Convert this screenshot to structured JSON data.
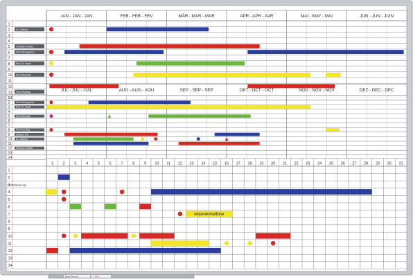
{
  "board": {
    "colors": {
      "frame": "#b9bcc0",
      "grid": "#7d8187",
      "blue": "#2c3e9c",
      "red": "#d42a26",
      "yellow": "#f1e42a",
      "green": "#6bb53d",
      "magenta": "#c22d8a",
      "label_plate": "#5a5f66"
    },
    "half1": {
      "months": [
        "JAN - JAN - JAN",
        "FEB - FEB - FEV",
        "MÄR - MAR - MAR",
        "APR - APR - AVR",
        "MAI - MAY - MAI",
        "JUN - JUN - JUIN"
      ],
      "row_numbers": [
        "1",
        "2",
        "3",
        "4",
        "5",
        "6",
        "7",
        "8",
        "9",
        "10",
        "11",
        "12",
        "13",
        "14"
      ],
      "row_labels": [
        "",
        "Dr. Gelltner",
        "",
        "",
        "Friedrich Schiller",
        "Fritz Baumgartner",
        "",
        "Prof. Dr. Faust",
        "",
        "Ernst Meyhafe",
        "",
        "",
        "Paul Grünling",
        ""
      ],
      "bars": [
        {
          "row": 2,
          "start": 1.0,
          "end": 2.7,
          "color": "blue"
        },
        {
          "row": 5,
          "start": 0.55,
          "end": 3.55,
          "color": "red"
        },
        {
          "row": 6,
          "start": 0.3,
          "end": 1.95,
          "color": "blue"
        },
        {
          "row": 6,
          "start": 3.35,
          "end": 5.95,
          "color": "blue"
        },
        {
          "row": 8,
          "start": 1.5,
          "end": 3.3,
          "color": "green"
        },
        {
          "row": 10,
          "start": 1.45,
          "end": 4.4,
          "color": "yellow"
        },
        {
          "row": 10,
          "start": 4.65,
          "end": 4.9,
          "color": "yellow"
        },
        {
          "row": 12,
          "start": 0.05,
          "end": 1.2,
          "color": "red"
        },
        {
          "row": 12,
          "start": 3.35,
          "end": 4.8,
          "color": "red"
        }
      ],
      "markers": [
        {
          "row": 2,
          "pos": 0.08,
          "shape": "circle",
          "color": "red"
        },
        {
          "row": 6,
          "pos": 0.08,
          "shape": "circle",
          "color": "red"
        },
        {
          "row": 8,
          "pos": 0.08,
          "shape": "circle",
          "color": "yellow"
        },
        {
          "row": 10,
          "pos": 0.08,
          "shape": "circle",
          "color": "red"
        }
      ]
    },
    "half2": {
      "months": [
        "JUL - JUL - JUIL",
        "AUG - AUG - AOU",
        "SEP - SEP - SEP",
        "OKT - OCT - OCT",
        "NOV - NOV - NOV",
        "DEZ - DEC - DEC"
      ],
      "row_numbers": [
        "1",
        "2",
        "3",
        "4",
        "5",
        "6",
        "7",
        "8",
        "9",
        "10",
        "11",
        "12",
        "13",
        "14"
      ],
      "row_labels": [
        "",
        "Fritz Baumgartner",
        "Prof. Dr. Faust",
        "",
        "Ernst Meyhafe",
        "",
        "",
        "Paul Grünling",
        "Wilhelm Tell",
        "Dr. Gelltner",
        "",
        "Friedrich Schiller",
        "",
        ""
      ],
      "bars": [
        {
          "row": 2,
          "start": 0.7,
          "end": 2.4,
          "color": "blue"
        },
        {
          "row": 3,
          "start": 0.0,
          "end": 4.4,
          "color": "yellow"
        },
        {
          "row": 5,
          "start": 1.7,
          "end": 3.4,
          "color": "green"
        },
        {
          "row": 9,
          "start": 0.3,
          "end": 1.85,
          "color": "red"
        },
        {
          "row": 9,
          "start": 2.8,
          "end": 3.55,
          "color": "blue"
        },
        {
          "row": 10,
          "start": 0.45,
          "end": 1.45,
          "color": "green"
        },
        {
          "row": 11,
          "start": 0.45,
          "end": 1.7,
          "color": "blue"
        },
        {
          "row": 11,
          "start": 2.2,
          "end": 3.55,
          "color": "red"
        }
      ],
      "markers": [
        {
          "row": 2,
          "pos": 0.08,
          "shape": "circle",
          "color": "red"
        },
        {
          "row": 5,
          "pos": 0.08,
          "shape": "circle",
          "color": "magenta"
        },
        {
          "row": 5,
          "pos": 1.05,
          "shape": "triangle",
          "color": "green"
        },
        {
          "row": 8,
          "pos": 0.08,
          "shape": "circle",
          "color": "red"
        },
        {
          "row": 10,
          "pos": 1.6,
          "shape": "circle",
          "color": "yellow"
        },
        {
          "row": 10,
          "pos": 1.82,
          "shape": "circle",
          "color": "red"
        },
        {
          "row": 10,
          "pos": 2.53,
          "shape": "circle",
          "color": "blue"
        },
        {
          "row": 10,
          "pos": 3.0,
          "shape": "triangle",
          "color": "red"
        }
      ],
      "small_bars": [
        {
          "row": 8,
          "start": 4.65,
          "end": 4.88,
          "color": "yellow"
        }
      ]
    },
    "daily": {
      "day_numbers": [
        "1",
        "2",
        "3",
        "4",
        "5",
        "6",
        "7",
        "8",
        "9",
        "10",
        "11",
        "12",
        "13",
        "14",
        "15",
        "16",
        "17",
        "18",
        "19",
        "20",
        "21",
        "22",
        "23",
        "24",
        "25",
        "26",
        "27",
        "28",
        "29",
        "30",
        "31"
      ],
      "row_numbers": [
        "1",
        "2",
        "3",
        "4",
        "5",
        "6",
        "7",
        "8",
        "9",
        "10",
        "11",
        "12",
        "13",
        "14"
      ],
      "row_labels": [
        "",
        "",
        "Vertriebsplanung",
        "",
        "",
        "",
        "",
        "",
        "",
        "",
        "",
        "",
        "",
        ""
      ],
      "bars": [
        {
          "row": 2,
          "start": 1.0,
          "end": 2.0,
          "color": "blue"
        },
        {
          "row": 4,
          "start": 9.0,
          "end": 28.0,
          "color": "blue"
        },
        {
          "row": 6,
          "start": 2.0,
          "end": 3.0,
          "color": "green"
        },
        {
          "row": 6,
          "start": 5.0,
          "end": 6.0,
          "color": "green"
        },
        {
          "row": 6,
          "start": 8.0,
          "end": 9.0,
          "color": "red"
        },
        {
          "row": 10,
          "start": 3.0,
          "end": 7.0,
          "color": "red"
        },
        {
          "row": 10,
          "start": 8.0,
          "end": 11.0,
          "color": "red"
        },
        {
          "row": 10,
          "start": 18.0,
          "end": 21.0,
          "color": "red"
        },
        {
          "row": 11,
          "start": 9.0,
          "end": 14.0,
          "color": "yellow"
        },
        {
          "row": 12,
          "start": 0.0,
          "end": 1.0,
          "color": "red"
        },
        {
          "row": 12,
          "start": 2.0,
          "end": 15.0,
          "color": "blue"
        }
      ],
      "label_bars": [
        {
          "row": 4,
          "start": 0.0,
          "end": 1.0,
          "color": "yellow"
        }
      ],
      "markers": [
        {
          "row": 4,
          "pos": 1.5,
          "shape": "circle",
          "color": "red"
        },
        {
          "row": 4,
          "pos": 6.5,
          "shape": "circle",
          "color": "red"
        },
        {
          "row": 5,
          "pos": 1.5,
          "shape": "circle",
          "color": "red"
        },
        {
          "row": 7,
          "pos": 11.5,
          "shape": "circle",
          "color": "red"
        },
        {
          "row": 10,
          "pos": 1.5,
          "shape": "circle",
          "color": "red"
        },
        {
          "row": 10,
          "pos": 2.5,
          "shape": "circle",
          "color": "yellow"
        },
        {
          "row": 10,
          "pos": 7.5,
          "shape": "circle",
          "color": "yellow"
        },
        {
          "row": 11,
          "pos": 15.5,
          "shape": "circle",
          "color": "yellow"
        },
        {
          "row": 11,
          "pos": 17.5,
          "shape": "circle",
          "color": "yellow"
        },
        {
          "row": 11,
          "pos": 19.5,
          "shape": "circle",
          "color": "red"
        }
      ],
      "note_label": {
        "row": 7,
        "start": 12.0,
        "end": 16.0,
        "text": "wkjasdoiselfpse"
      }
    },
    "tray": {
      "left_label": "Board-Service",
      "right_label": "TITAN"
    }
  }
}
